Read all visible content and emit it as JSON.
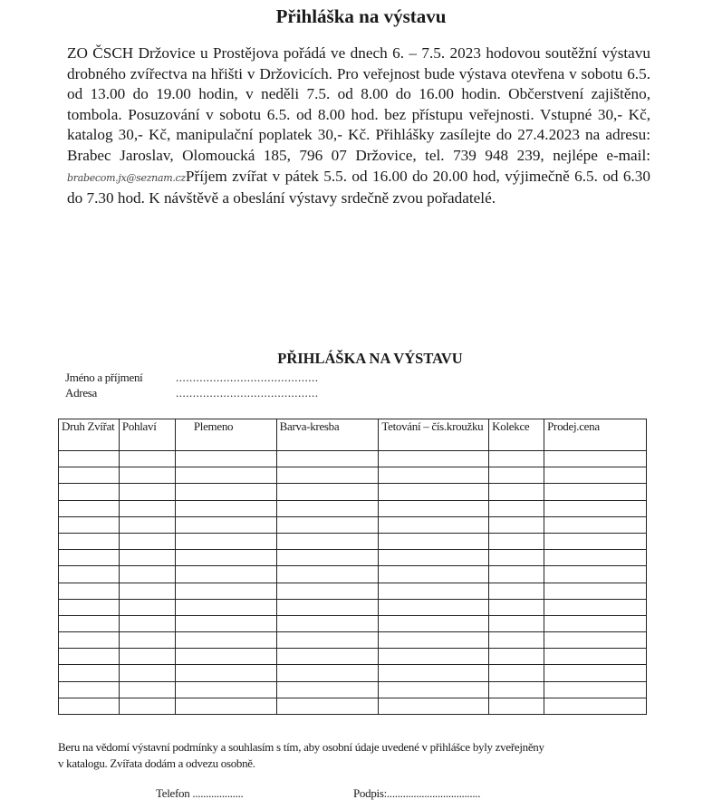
{
  "document": {
    "title": "Přihláška na výstavu",
    "paragraph_before_email": "ZO ČSCH Držovice u Prostějova pořádá ve dnech 6. – 7.5. 2023 hodovou soutěžní výstavu drobného zvířectva na hřišti v Držovicích. Pro veřejnost bude výstava otevřena v sobotu 6.5. od 13.00 do 19.00 hodin, v neděli 7.5. od 8.00 do 16.00 hodin. Občerstvení zajištěno, tombola. Posuzování v sobotu 6.5. od 8.00 hod. bez přístupu veřejnosti. Vstupné 30,- Kč, katalog 30,- Kč, manipulační poplatek 30,- Kč. Přihlášky zasílejte do 27.4.2023 na adresu: Brabec Jaroslav, Olomoucká 185, 796 07 Držovice, tel. 739 948 239, nejlépe e-mail:",
    "handwritten_email": "brabecom.jx@seznam.cz",
    "paragraph_after_email": "Příjem zvířat v pátek 5.5. od 16.00 do 20.00 hod, výjimečně 6.5. od 6.30 do 7.30 hod. K návštěvě a obeslání výstavy srdečně zvou pořadatelé."
  },
  "form": {
    "title": "PŘIHLÁŠKA NA VÝSTAVU",
    "name_label": "Jméno a příjmení",
    "name_value": "..........................................",
    "address_label": "Adresa",
    "address_value": "..........................................",
    "table": {
      "columns": [
        "Druh Zvířat",
        "Pohlaví",
        "Plemeno",
        "Barva-kresba",
        "Tetování – čís.kroužku",
        "Kolekce",
        "Prodej.cena"
      ],
      "empty_rows": 16
    },
    "consent": "Beru na vědomí výstavní podmínky a souhlasím s tím, aby osobní údaje uvedené v přihlášce byly zveřejněny v katalogu. Zvířata dodám a odvezu osobně.",
    "phone_label": "Telefon",
    "phone_value": "...................",
    "signature_label": "Podpis:",
    "signature_value": "..................................."
  }
}
